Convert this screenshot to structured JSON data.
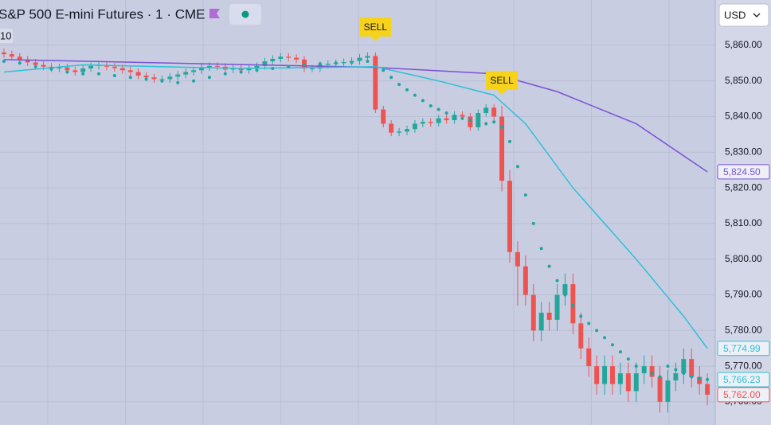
{
  "chart_data": {
    "type": "candlestick",
    "title": "S&P 500 E-mini Futures · 1 · CME",
    "indicator_label": "10",
    "currency": "USD",
    "up_color": "#26a69a",
    "down_color": "#ef5350",
    "grid": true,
    "xlim": [
      -0.5,
      90
    ],
    "ylim": [
      5753.5,
      5872.7
    ],
    "yticks": [
      {
        "value": 5760,
        "label": "5,760.00"
      },
      {
        "value": 5770,
        "label": "5,770.00"
      },
      {
        "value": 5780,
        "label": "5,780.00"
      },
      {
        "value": 5790,
        "label": "5,790.00"
      },
      {
        "value": 5800,
        "label": "5,800.00"
      },
      {
        "value": 5810,
        "label": "5,810.00"
      },
      {
        "value": 5820,
        "label": "5,820.00"
      },
      {
        "value": 5830,
        "label": "5,830.00"
      },
      {
        "value": 5840,
        "label": "5,840.00"
      },
      {
        "value": 5850,
        "label": "5,850.00"
      },
      {
        "value": 5860,
        "label": "5,860.00"
      }
    ],
    "open": [
      5858,
      5857.5,
      5856.8,
      5856,
      5855.2,
      5854.5,
      5854,
      5853.5,
      5853.8,
      5853,
      5852.5,
      5853.5,
      5854.2,
      5854.5,
      5854,
      5853.6,
      5853,
      5852.5,
      5851.5,
      5851,
      5850.5,
      5850.5,
      5851.2,
      5851.8,
      5852.5,
      5853,
      5853.8,
      5854.2,
      5854,
      5853.2,
      5853.5,
      5853,
      5853.5,
      5854.2,
      5855.5,
      5856.2,
      5856.8,
      5856.5,
      5856,
      5853.5,
      5853.5,
      5854.5,
      5854.8,
      5855,
      5855.3,
      5855.6,
      5856.5,
      5857,
      5842,
      5838,
      5835.5,
      5835.8,
      5836.5,
      5838,
      5838.5,
      5838.2,
      5839.5,
      5839,
      5840.5,
      5840,
      5837,
      5841,
      5842.5,
      5840,
      5822,
      5802,
      5798,
      5790,
      5780,
      5785,
      5783,
      5790,
      5793,
      5782,
      5775,
      5770,
      5765,
      5770,
      5765,
      5768,
      5763,
      5768,
      5770,
      5767,
      5760,
      5766,
      5768,
      5772,
      5767,
      5765
    ],
    "high": [
      5859,
      5858.5,
      5857.8,
      5857,
      5856.2,
      5855.5,
      5855,
      5854.8,
      5854.8,
      5854,
      5854.5,
      5855.2,
      5855.5,
      5855.5,
      5855,
      5854.6,
      5854,
      5853.5,
      5852.5,
      5852,
      5851.5,
      5852.2,
      5852.8,
      5853.5,
      5854,
      5854.8,
      5855.2,
      5855.2,
      5855,
      5854.5,
      5854.5,
      5854.5,
      5855.2,
      5856.5,
      5857.2,
      5857.8,
      5857.8,
      5857.5,
      5857,
      5854.5,
      5855.5,
      5855.8,
      5856,
      5856.3,
      5856.6,
      5857.5,
      5858,
      5858,
      5843,
      5839,
      5836.8,
      5837.5,
      5839,
      5839.5,
      5839.5,
      5840.5,
      5840.5,
      5841.5,
      5841.5,
      5841,
      5842,
      5843.5,
      5843.5,
      5843,
      5825,
      5805,
      5801,
      5793,
      5788,
      5788,
      5793,
      5796,
      5796,
      5785,
      5778,
      5773,
      5773,
      5773,
      5771,
      5771,
      5771,
      5773,
      5773,
      5770,
      5769,
      5771,
      5775,
      5775,
      5770,
      5768
    ],
    "low": [
      5856.5,
      5855.8,
      5855,
      5854.2,
      5853.5,
      5853,
      5852.5,
      5852.5,
      5852,
      5851.5,
      5851.5,
      5852.5,
      5853.2,
      5853,
      5852.6,
      5852,
      5851.5,
      5850.5,
      5850,
      5849.5,
      5849.5,
      5849.5,
      5850.2,
      5850.8,
      5851.5,
      5852,
      5852.8,
      5853,
      5852.2,
      5852.2,
      5852,
      5852,
      5852.5,
      5853.2,
      5854.5,
      5855.2,
      5855.5,
      5855,
      5852.5,
      5852.5,
      5852.5,
      5853.5,
      5853.8,
      5854,
      5854.3,
      5854.6,
      5855.5,
      5841,
      5837,
      5834.5,
      5834.5,
      5834.8,
      5835.5,
      5837,
      5837.2,
      5837.2,
      5838,
      5838,
      5839,
      5836,
      5836,
      5840,
      5839,
      5819,
      5799,
      5787,
      5787,
      5777,
      5777,
      5780,
      5780,
      5787,
      5779,
      5772,
      5767,
      5762,
      5762,
      5762,
      5762,
      5760,
      5760,
      5765,
      5764,
      5757,
      5757,
      5763,
      5765,
      5764,
      5762,
      5759
    ],
    "close": [
      5857.5,
      5856.8,
      5856,
      5855.2,
      5854.5,
      5854,
      5853.5,
      5853.8,
      5853,
      5852.5,
      5853.5,
      5854.2,
      5854.5,
      5854,
      5853.6,
      5853,
      5852.5,
      5851.5,
      5851,
      5850.5,
      5850.5,
      5851.2,
      5851.8,
      5852.5,
      5853,
      5853.8,
      5854.2,
      5854,
      5853.2,
      5853.5,
      5853,
      5853.5,
      5854.2,
      5855.5,
      5856.2,
      5856.8,
      5856.5,
      5856,
      5853.5,
      5853.5,
      5854.5,
      5854.8,
      5855,
      5855.3,
      5855.6,
      5856.5,
      5857,
      5842,
      5838,
      5835.5,
      5835.8,
      5836.5,
      5838,
      5838.5,
      5838.2,
      5839.5,
      5839,
      5840.5,
      5840,
      5837,
      5841,
      5842.5,
      5840,
      5822,
      5802,
      5798,
      5790,
      5780,
      5785,
      5783,
      5790,
      5793,
      5782,
      5775,
      5770,
      5765,
      5770,
      5765,
      5768,
      5763,
      5768,
      5770,
      5767,
      5760,
      5766,
      5768,
      5772,
      5767,
      5765,
      5762
    ],
    "lines": [
      {
        "color": "#7b52d6",
        "x": [
          0,
          47,
          62,
          70,
          80,
          89
        ],
        "values": [
          5856,
          5853.8,
          5852,
          5847,
          5838,
          5824.5
        ]
      },
      {
        "color": "#2cc0d6",
        "x": [
          0,
          10,
          30,
          47,
          55,
          62,
          66,
          72,
          80,
          86,
          89
        ],
        "values": [
          5852.5,
          5854.5,
          5853.5,
          5854,
          5850,
          5846,
          5838,
          5820,
          5800,
          5784,
          5774.99
        ]
      }
    ],
    "sar": {
      "color": "#1ea5a0",
      "x": [
        0,
        2,
        4,
        6,
        8,
        10,
        12,
        14,
        16,
        18,
        20,
        22,
        24,
        26,
        28,
        30,
        32,
        34,
        36,
        38,
        40,
        42,
        44,
        46,
        48,
        49,
        50,
        51,
        52,
        53,
        54,
        55,
        56,
        57,
        58,
        59,
        60,
        61,
        62,
        63,
        64,
        65,
        66,
        67,
        68,
        69,
        70,
        71,
        72,
        73,
        74,
        75,
        76,
        77,
        78,
        79,
        80,
        81,
        82,
        83,
        84,
        85,
        86,
        87,
        88,
        89
      ],
      "values": [
        5855.5,
        5855,
        5854,
        5853.3,
        5852.5,
        5852,
        5852,
        5851.5,
        5851,
        5850.5,
        5850,
        5849.5,
        5850,
        5851,
        5852,
        5852.5,
        5853,
        5853.5,
        5854,
        5854.5,
        5854.8,
        5855,
        5855.2,
        5855.5,
        5853,
        5851,
        5849,
        5847.5,
        5846,
        5844.5,
        5843,
        5842,
        5841,
        5840,
        5839.5,
        5839,
        5838.5,
        5838,
        5838.5,
        5837,
        5833,
        5826,
        5818,
        5810,
        5803,
        5798,
        5794,
        5790,
        5787,
        5784,
        5782,
        5780,
        5778,
        5776,
        5774,
        5772,
        5770,
        5769,
        5768,
        5767,
        5770,
        5769,
        5768,
        5767,
        5766.5,
        5766.23
      ]
    },
    "price_labels": [
      {
        "value": 5824.5,
        "label": "5,824.50",
        "color": "#7b52d6"
      },
      {
        "value": 5774.99,
        "label": "5,774.99",
        "color": "#2cc0d6"
      },
      {
        "value": 5766.23,
        "label": "5,766.23",
        "color": "#2cc0d6"
      },
      {
        "value": 5762,
        "label": "5,762.00",
        "color": "#ef5350"
      }
    ],
    "annotations": [
      {
        "text": "SELL",
        "x": 47
      },
      {
        "text": "SELL",
        "x": 63
      }
    ]
  }
}
